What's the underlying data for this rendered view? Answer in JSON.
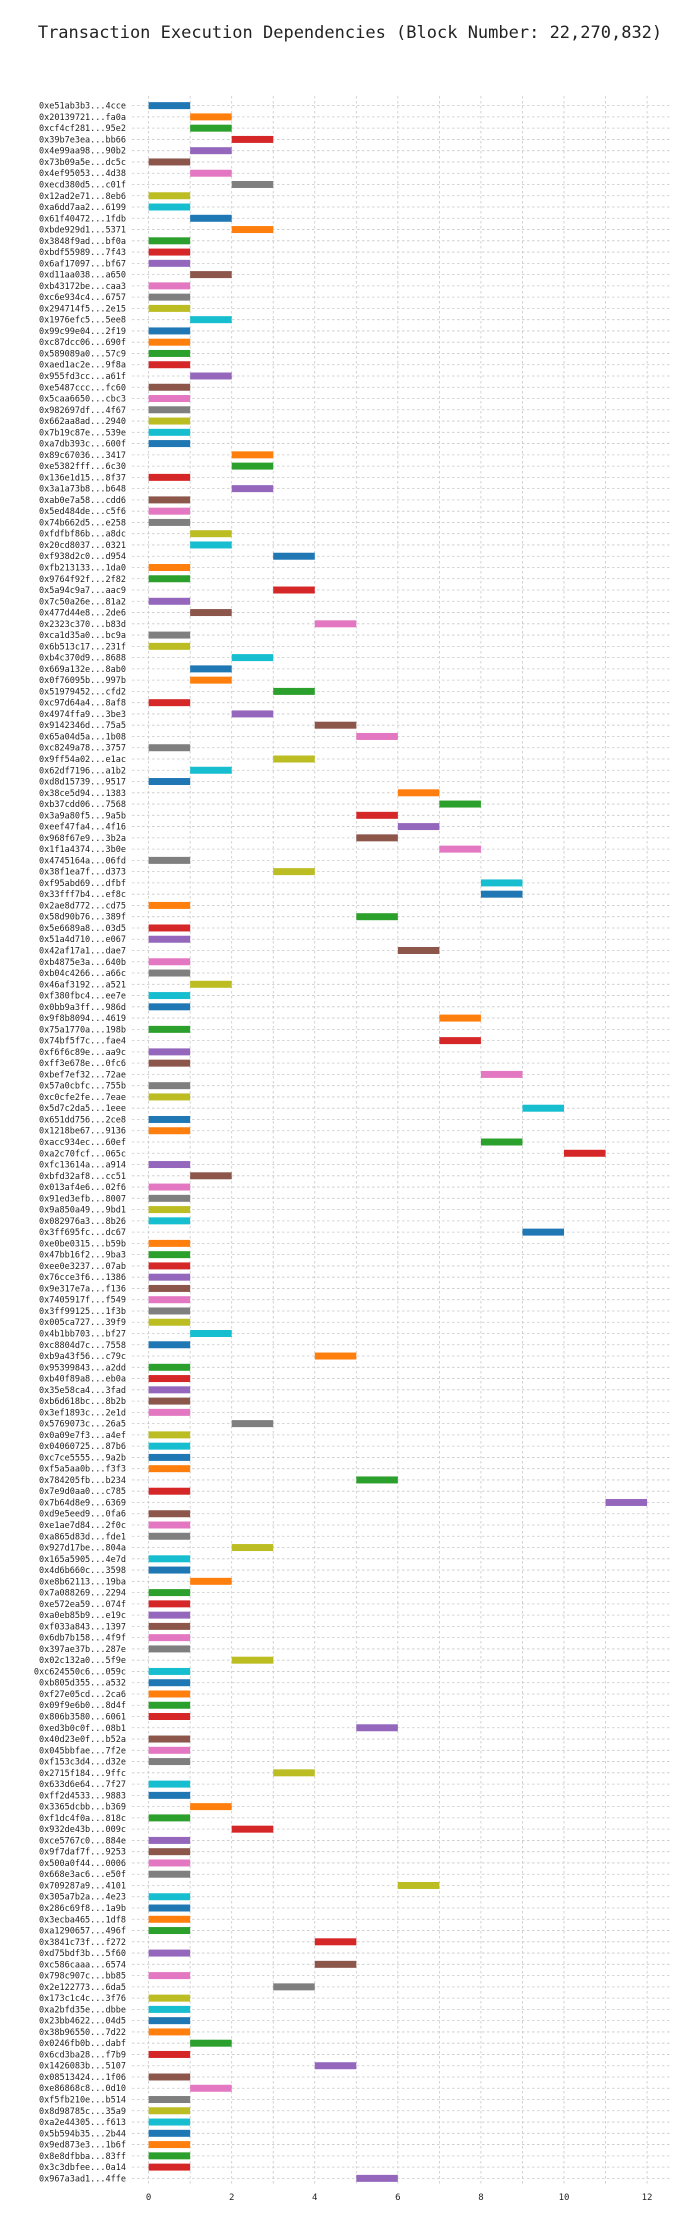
{
  "chart_data": {
    "type": "gantt",
    "title": "Transaction Execution Dependencies (Block Number: 22,270,832)",
    "xlabel": "",
    "ylabel": "",
    "xlim": [
      -0.4,
      12.6
    ],
    "xticks": [
      0,
      2,
      4,
      6,
      8,
      10,
      12
    ],
    "grid": true,
    "palette": [
      "#1f77b4",
      "#ff7f0e",
      "#2ca02c",
      "#d62728",
      "#9467bd",
      "#8c564b",
      "#e377c2",
      "#7f7f7f",
      "#bcbd22",
      "#17becf"
    ],
    "tx_labels": [
      "0xe51ab3b3...4cce",
      "0x20139721...fa0a",
      "0xcf4cf281...95e2",
      "0x39b7e3ea...bb66",
      "0x4e99aa98...90b2",
      "0x73b09a5e...dc5c",
      "0x4ef95053...4d38",
      "0xecd380d5...c01f",
      "0x12ad2e71...8eb6",
      "0xa6dd7aa2...6199",
      "0x61f40472...1fdb",
      "0xbde929d1...5371",
      "0x3848f9ad...bf0a",
      "0xbdf55989...7f43",
      "0x6af17097...bf67",
      "0xd11aa038...a650",
      "0xb43172be...caa3",
      "0xc6e934c4...6757",
      "0x294714f5...2e15",
      "0x1976efc5...5ee8",
      "0x99c99e04...2f19",
      "0xc87dcc06...690f",
      "0x589089a0...57c9",
      "0xaed1ac2e...9f8a",
      "0x955fd3cc...a61f",
      "0xe5487ccc...fc60",
      "0x5caa6650...cbc3",
      "0x982697df...4f67",
      "0x662aa8ad...2940",
      "0x7b19c87e...539e",
      "0xa7db393c...600f",
      "0x89c67036...3417",
      "0xe5382fff...6c30",
      "0x136e1d15...8f37",
      "0x3a1a73b8...b648",
      "0xab0e7a58...cdd6",
      "0x5ed484de...c5f6",
      "0x74b662d5...e258",
      "0xfdfbf86b...a8dc",
      "0x20cd8037...0321",
      "0xf938d2c0...d954",
      "0xfb213133...1da0",
      "0x9764f92f...2f82",
      "0x5a94c9a7...aac9",
      "0x7c50a26e...81a2",
      "0x477d44e8...2de6",
      "0x2323c370...b83d",
      "0xca1d35a0...bc9a",
      "0x6b513c17...231f",
      "0xb4c370d9...8688",
      "0x669a132e...8ab0",
      "0x0f76095b...997b",
      "0x51979452...cfd2",
      "0xc97d64a4...8af8",
      "0x4974ffa9...3be3",
      "0x9142346d...75a5",
      "0x65a04d5a...1b08",
      "0xc8249a78...3757",
      "0x9ff54a02...e1ac",
      "0x62df7196...a1b2",
      "0xd8d15739...9517",
      "0x38ce5d94...1383",
      "0xb37cdd06...7568",
      "0x3a9a80f5...9a5b",
      "0xeef47fa4...4f16",
      "0x968f67e9...3b2a",
      "0x1f1a4374...3b0e",
      "0x4745164a...06fd",
      "0x38f1ea7f...d373",
      "0xf95abd69...dfbf",
      "0x33fff7b4...ef8c",
      "0x2ae8d772...cd75",
      "0x58d90b76...389f",
      "0x5e6689a8...03d5",
      "0x51a4d710...e067",
      "0x42af17a1...dae7",
      "0xb4875e3a...640b",
      "0xb04c4266...a66c",
      "0x46af3192...a521",
      "0xf380fbc4...ee7e",
      "0x0bb9a3ff...986d",
      "0x9f8b8094...4619",
      "0x75a1770a...198b",
      "0x74bf5f7c...fae4",
      "0xf6f6c89e...aa9c",
      "0xff3e678e...0fc6",
      "0xbef7ef32...72ae",
      "0x57a0cbfc...755b",
      "0xc0cfe2fe...7eae",
      "0x5d7c2da5...1eee",
      "0x651dd756...2ce8",
      "0x1218be67...9136",
      "0xacc934ec...60ef",
      "0xa2c70fcf...065c",
      "0xfc13614a...a914",
      "0xbfd32af8...cc51",
      "0x013af4e6...02f6",
      "0x91ed3efb...8007",
      "0x9a850a49...9bd1",
      "0x082976a3...8b26",
      "0x3ff695fc...dc67",
      "0xe0be0315...b59b",
      "0x47bb16f2...9ba3",
      "0xee0e3237...07ab",
      "0x76cce3f6...1386",
      "0x9e317e7a...f136",
      "0x7405917f...f549",
      "0x3ff99125...1f3b",
      "0x005ca727...39f9",
      "0x4b1bb703...bf27",
      "0xc8804d7c...7558",
      "0xb9a43f56...c79c",
      "0x95399843...a2dd",
      "0xb40f89a8...eb0a",
      "0x35e58ca4...3fad",
      "0xb6d618bc...8b2b",
      "0x3ef1893c...2e1d",
      "0x5769073c...26a5",
      "0x0a09e7f3...a4ef",
      "0x04060725...87b6",
      "0xc7ce5555...9a2b",
      "0xf5a5aa0b...f3f3",
      "0x784205fb...b234",
      "0x7e9d0aa0...c785",
      "0x7b64d8e9...6369",
      "0xd9e5eed9...0fa6",
      "0xe1ae7d84...2f0c",
      "0xa865d83d...fde1",
      "0x927d17be...804a",
      "0x165a5905...4e7d",
      "0x4d6b660c...3598",
      "0xe8b62113...19ba",
      "0x7a088269...2294",
      "0xe572ea59...074f",
      "0xa0eb85b9...e19c",
      "0xf033a843...1397",
      "0x6db7b158...4f9f",
      "0x397ae37b...287e",
      "0x02c132a0...5f9e",
      "0xc624550c6...059c",
      "0xb805d355...a532",
      "0xf27e05cd...2ca6",
      "0x09f9e6b0...8d4f",
      "0x806b3580...6061",
      "0xed3b0c0f...08b1",
      "0x40d23e0f...b52a",
      "0x045bbfae...7f2e",
      "0xf153c3d4...d32e",
      "0x2715f184...9ffc",
      "0x633d6e64...7f27",
      "0xff2d4533...9883",
      "0x3365dcbb...b369",
      "0xf1dc4f0a...818c",
      "0x932de43b...009c",
      "0xce5767c0...884e",
      "0x9f7daf7f...9253",
      "0x500a0f44...0006",
      "0x668e3ac6...e50f",
      "0x709287a9...4101",
      "0x305a7b2a...4e23",
      "0x286c69f8...1a9b",
      "0x3ecba465...1df8",
      "0xa1290657...496f",
      "0x3841c73f...f272",
      "0xd75bdf3b...5f60",
      "0xc586caaa...6574",
      "0x798c907c...bb85",
      "0x2e122773...6da5",
      "0x173c1c4c...3f76",
      "0xa2bfd35e...dbbe",
      "0x23bb4622...04d5",
      "0x38b96550...7d22",
      "0x0246fb0b...dabf",
      "0x6cd3ba28...f7b9",
      "0x1426083b...5107",
      "0x08513424...1f06",
      "0xe86868c8...0d10",
      "0xf5fb210e...b514",
      "0x8d98785c...35a9",
      "0xa2e44305...f613",
      "0x5b594b35...2b44",
      "0x9ed873e3...1b6f",
      "0x8e8dfbba...83ff",
      "0x3c3dbfee...0a14",
      "0x967a3ad1...4ffe"
    ],
    "tx_start": [
      0,
      1,
      1,
      2,
      1,
      0,
      1,
      2,
      0,
      0,
      1,
      2,
      0,
      0,
      0,
      1,
      0,
      0,
      0,
      1,
      0,
      0,
      0,
      0,
      1,
      0,
      0,
      0,
      0,
      0,
      0,
      2,
      2,
      0,
      2,
      0,
      0,
      0,
      1,
      1,
      3,
      0,
      0,
      3,
      0,
      1,
      4,
      0,
      0,
      2,
      1,
      1,
      3,
      0,
      2,
      4,
      5,
      0,
      3,
      1,
      0,
      6,
      7,
      5,
      6,
      5,
      7,
      0,
      3,
      8,
      8,
      0,
      5,
      0,
      0,
      6,
      0,
      0,
      1,
      0,
      0,
      7,
      0,
      7,
      0,
      0,
      8,
      0,
      0,
      9,
      0,
      0,
      8,
      10,
      0,
      1,
      0,
      0,
      0,
      0,
      9,
      0,
      0,
      0,
      0,
      0,
      0,
      0,
      0,
      1,
      0,
      4,
      0,
      0,
      0,
      0,
      0,
      2,
      0,
      0,
      0,
      0,
      5,
      0,
      11,
      0,
      0,
      0,
      2,
      0,
      0,
      1,
      0,
      0,
      0,
      0,
      0,
      0,
      2,
      0,
      0,
      0,
      0,
      0,
      5,
      0,
      0,
      0,
      3,
      0,
      0,
      1,
      0,
      2,
      0,
      0,
      0,
      0,
      6,
      0,
      0,
      0,
      0,
      4,
      0,
      4,
      0,
      3,
      0,
      0,
      0,
      0,
      1,
      0,
      4,
      0,
      1,
      0,
      0,
      0,
      0,
      0,
      0,
      0,
      5
    ],
    "tx_color": [
      0,
      1,
      2,
      3,
      4,
      5,
      6,
      7,
      8,
      9,
      0,
      1,
      2,
      3,
      4,
      5,
      6,
      7,
      8,
      9,
      0,
      1,
      2,
      3,
      4,
      5,
      6,
      7,
      8,
      9,
      0,
      1,
      2,
      3,
      4,
      5,
      6,
      7,
      8,
      9,
      0,
      1,
      2,
      3,
      4,
      5,
      6,
      7,
      8,
      9,
      0,
      1,
      2,
      3,
      4,
      5,
      6,
      7,
      8,
      9,
      0,
      1,
      2,
      3,
      4,
      5,
      6,
      7,
      8,
      9,
      0,
      1,
      2,
      3,
      4,
      5,
      6,
      7,
      8,
      9,
      0,
      1,
      2,
      3,
      4,
      5,
      6,
      7,
      8,
      9,
      0,
      1,
      2,
      3,
      4,
      5,
      6,
      7,
      8,
      9,
      0,
      1,
      2,
      3,
      4,
      5,
      6,
      7,
      8,
      9,
      0,
      1,
      2,
      3,
      4,
      5,
      6,
      7,
      8,
      9,
      0,
      1,
      2,
      3,
      4,
      5,
      6,
      7,
      8,
      9,
      0,
      1,
      2,
      3,
      4,
      5,
      6,
      7,
      8,
      9,
      0,
      1,
      2,
      3,
      4,
      5,
      6,
      7,
      8,
      9,
      0,
      1,
      2,
      3,
      4,
      5,
      6,
      7,
      8,
      9,
      0,
      1,
      2,
      3,
      4,
      5,
      6,
      7,
      8,
      9,
      0,
      1,
      2,
      3,
      4,
      5,
      6,
      7,
      8,
      9,
      0,
      1,
      2,
      3,
      4
    ]
  }
}
